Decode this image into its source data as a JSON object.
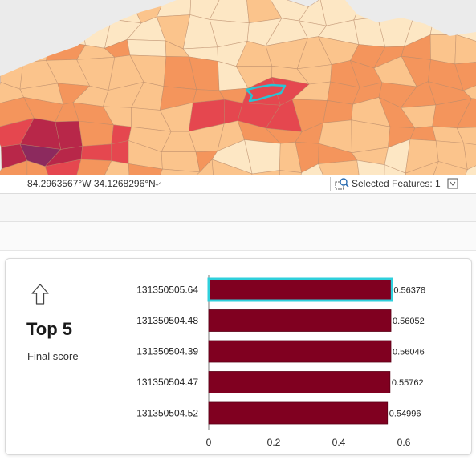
{
  "status_bar": {
    "coordinates": "84.2963567°W 34.1268296°N",
    "coordinates_menu_icon": "chevron-down-icon",
    "selected_features_label": "Selected Features: 1",
    "select_icon": "zoom-to-selection-icon",
    "extra_button_icon": "map-option-icon"
  },
  "map": {
    "selected_color": "#29c4d4",
    "palette": [
      "#fde7c4",
      "#fbc48c",
      "#f4955c",
      "#e5474f",
      "#b82749",
      "#8c2a5e"
    ]
  },
  "card": {
    "sort_icon": "up-arrow-icon",
    "title": "Top 5",
    "subtitle": "Final score"
  },
  "chart_data": {
    "type": "bar",
    "orientation": "horizontal",
    "categories": [
      "131350505.64",
      "131350504.48",
      "131350504.39",
      "131350504.47",
      "131350504.52"
    ],
    "values": [
      0.56378,
      0.56052,
      0.56046,
      0.55762,
      0.54996
    ],
    "value_labels": [
      "0.56378",
      "0.56052",
      "0.56046",
      "0.55762",
      "0.54996"
    ],
    "xlim": [
      0,
      0.6
    ],
    "xticks": [
      "0",
      "0.2",
      "0.4",
      "0.6"
    ],
    "bar_color": "#800020",
    "highlight_color": "#2fd0dc",
    "highlighted_index": 0,
    "grid": false
  }
}
